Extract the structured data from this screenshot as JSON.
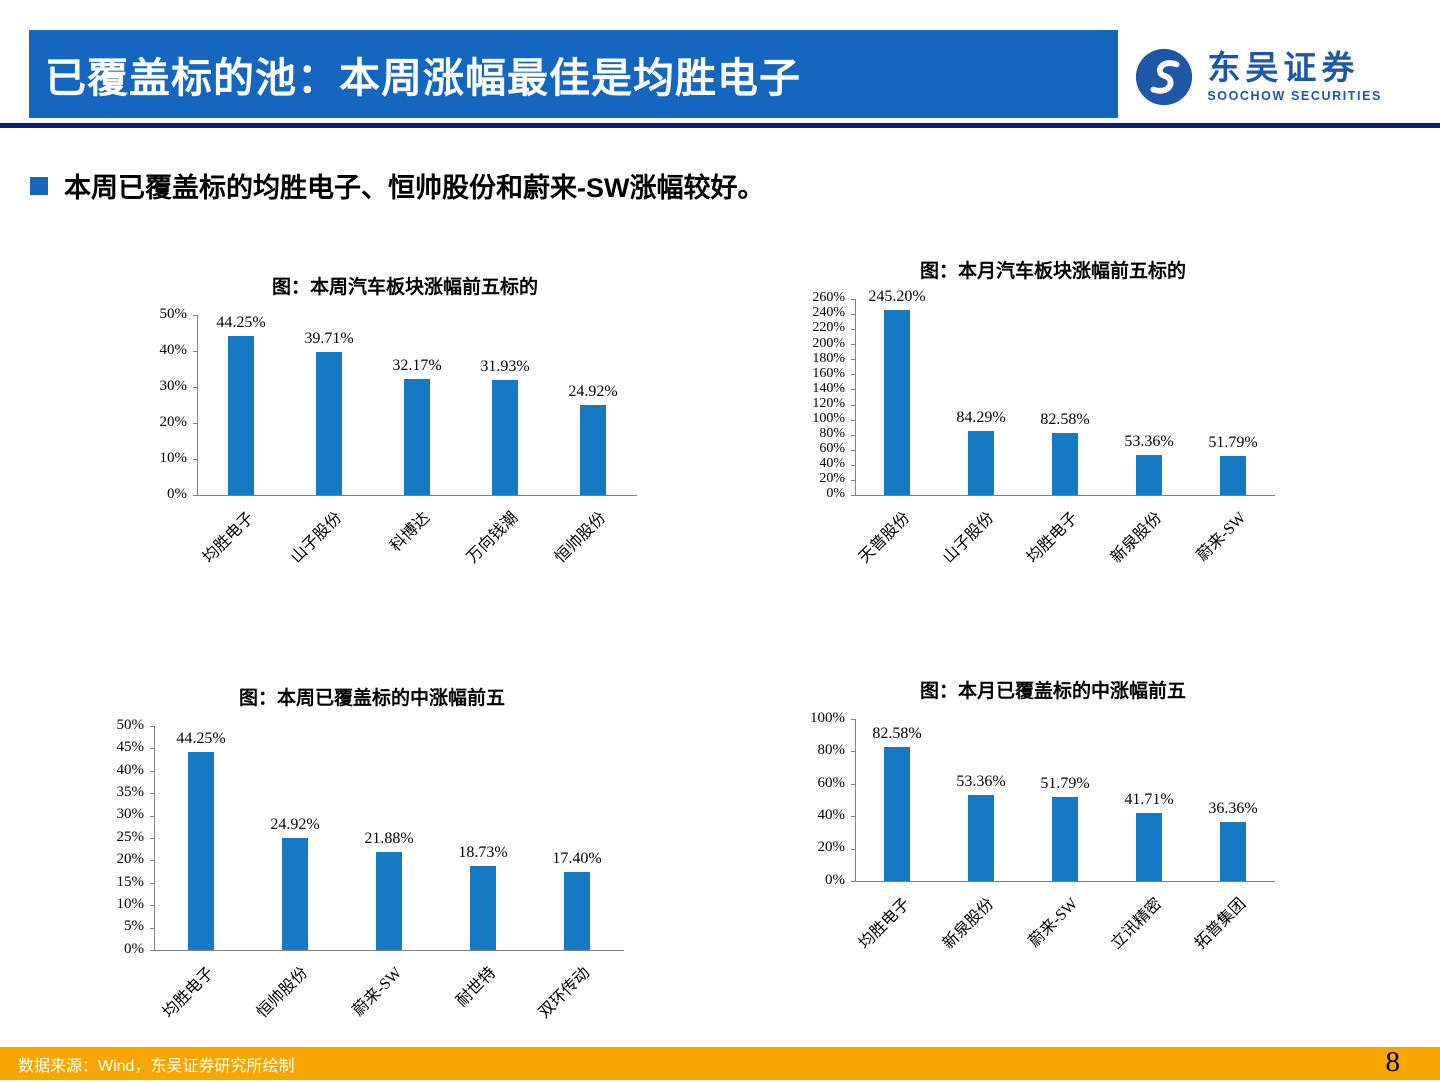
{
  "header": {
    "title": "已覆盖标的池：本周涨幅最佳是均胜电子",
    "logo": {
      "name": "东吴证券",
      "subtitle": "SOOCHOW SECURITIES"
    }
  },
  "bullet": {
    "text": "本周已覆盖标的均胜电子、恒帅股份和蔚来-SW涨幅较好。"
  },
  "colors": {
    "header_blue": "#1466BE",
    "rule_navy": "#0B1E78",
    "bar_blue": "#1679C4",
    "footer_orange": "#F7A600",
    "logo_blue": "#1E56A8"
  },
  "chart_data": [
    {
      "type": "bar",
      "title": "图：本周汽车板块涨幅前五标的",
      "categories": [
        "均胜电子",
        "山子股份",
        "科博达",
        "万向钱潮",
        "恒帅股份"
      ],
      "values": [
        44.25,
        39.71,
        32.17,
        31.93,
        24.92
      ],
      "data_labels": [
        "44.25%",
        "39.71%",
        "32.17%",
        "31.93%",
        "24.92%"
      ],
      "xlabel": "",
      "ylabel": "",
      "ylim": [
        0,
        50
      ],
      "ytick_step": 10,
      "ytick_suffix": "%",
      "grid": false,
      "legend": "none",
      "bar_color": "#1679C4"
    },
    {
      "type": "bar",
      "title": "图：本月汽车板块涨幅前五标的",
      "categories": [
        "天普股份",
        "山子股份",
        "均胜电子",
        "新泉股份",
        "蔚来-SW"
      ],
      "values": [
        245.2,
        84.29,
        82.58,
        53.36,
        51.79
      ],
      "data_labels": [
        "245.20%",
        "84.29%",
        "82.58%",
        "53.36%",
        "51.79%"
      ],
      "xlabel": "",
      "ylabel": "",
      "ylim": [
        0,
        260
      ],
      "ytick_step": 20,
      "ytick_suffix": "%",
      "grid": false,
      "legend": "none",
      "bar_color": "#1679C4"
    },
    {
      "type": "bar",
      "title": "图：本周已覆盖标的中涨幅前五",
      "categories": [
        "均胜电子",
        "恒帅股份",
        "蔚来-SW",
        "耐世特",
        "双环传动"
      ],
      "values": [
        44.25,
        24.92,
        21.88,
        18.73,
        17.4
      ],
      "data_labels": [
        "44.25%",
        "24.92%",
        "21.88%",
        "18.73%",
        "17.40%"
      ],
      "xlabel": "",
      "ylabel": "",
      "ylim": [
        0,
        50
      ],
      "ytick_step": 5,
      "ytick_suffix": "%",
      "grid": false,
      "legend": "none",
      "bar_color": "#1679C4"
    },
    {
      "type": "bar",
      "title": "图：本月已覆盖标的中涨幅前五",
      "categories": [
        "均胜电子",
        "新泉股份",
        "蔚来-SW",
        "立讯精密",
        "拓普集团"
      ],
      "values": [
        82.58,
        53.36,
        51.79,
        41.71,
        36.36
      ],
      "data_labels": [
        "82.58%",
        "53.36%",
        "51.79%",
        "41.71%",
        "36.36%"
      ],
      "xlabel": "",
      "ylabel": "",
      "ylim": [
        0,
        100
      ],
      "ytick_step": 20,
      "ytick_suffix": "%",
      "grid": false,
      "legend": "none",
      "bar_color": "#1679C4"
    }
  ],
  "footer": {
    "source": "数据来源：Wind，东吴证券研究所绘制",
    "page_number": "8"
  }
}
